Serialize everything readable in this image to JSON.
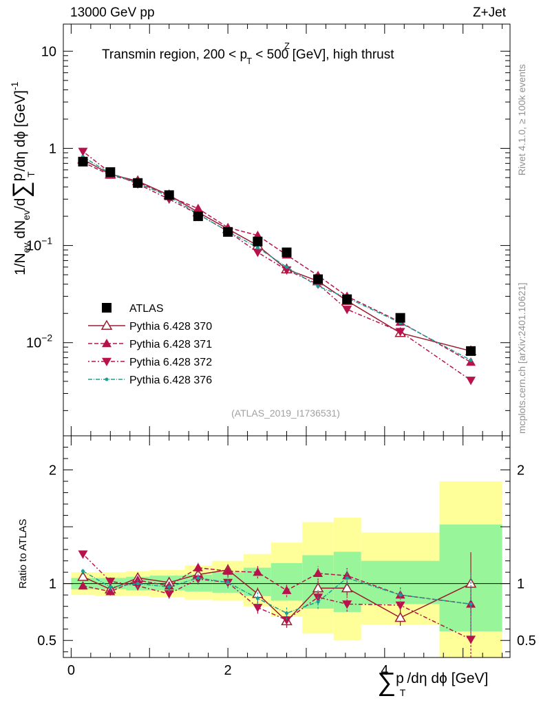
{
  "header": {
    "left": "13000 GeV pp",
    "right": "Z+Jet"
  },
  "side": {
    "rivet": "Rivet 4.1.0, ≥ 100k events",
    "mcplots": "mcplots.cern.ch [arXiv:2401.10621]"
  },
  "labels": {
    "title_pre": "Transmin region, 200 < p",
    "title_sup": "Z",
    "title_sub": "T",
    "title_post": " < 500 [GeV], high thrust",
    "analysis": "(ATLAS_2019_I1736531)",
    "ylabel_main": "1/N",
    "ylabel_ev": "ev",
    "ylabel_mid": " dN",
    "ylabel_ev2": "ev",
    "ylabel_d": "/d",
    "ylabel_sum": "∑",
    "ylabel_p": "p",
    "ylabel_T": "T",
    "ylabel_rest": "/dη dϕ  [GeV]",
    "ylabel_exp": "-1",
    "ylabel_ratio": "Ratio to ATLAS",
    "xlabel_sum": "∑",
    "xlabel_p": "p",
    "xlabel_T": "T",
    "xlabel_rest": "/dη dϕ [GeV]"
  },
  "chart_data": {
    "type": "scatter",
    "x_range": [
      -0.1,
      5.6
    ],
    "main_y_range_log": [
      0.0011,
      19
    ],
    "ratio_y_range": [
      0.35,
      2.3
    ],
    "x_ticks": [
      0,
      2,
      4
    ],
    "main_y_ticks": [
      {
        "value": 10,
        "label": "10"
      },
      {
        "value": 1,
        "label": "1"
      },
      {
        "value": 0.1,
        "label": "10",
        "exp": "−1"
      },
      {
        "value": 0.01,
        "label": "10",
        "exp": "−2"
      }
    ],
    "ratio_y_ticks": [
      0.5,
      1,
      2
    ],
    "x": [
      0.15,
      0.5,
      0.85,
      1.25,
      1.62,
      2.0,
      2.38,
      2.75,
      3.15,
      3.52,
      4.2,
      5.1
    ],
    "x_edges": [
      0,
      0.3,
      0.7,
      1.0,
      1.45,
      1.8,
      2.2,
      2.55,
      2.95,
      3.35,
      3.7,
      4.7,
      5.5
    ],
    "legend": [
      "ATLAS",
      "Pythia 6.428 370",
      "Pythia 6.428 371",
      "Pythia 6.428 372",
      "Pythia 6.428 376"
    ],
    "band_yellow": [
      [
        0.9,
        1.1
      ],
      [
        0.89,
        1.1
      ],
      [
        0.89,
        1.11
      ],
      [
        0.88,
        1.12
      ],
      [
        0.86,
        1.16
      ],
      [
        0.85,
        1.2
      ],
      [
        0.8,
        1.26
      ],
      [
        0.71,
        1.36
      ],
      [
        0.56,
        1.54
      ],
      [
        0.5,
        1.58
      ],
      [
        0.64,
        1.45
      ],
      [
        0.25,
        1.9
      ]
    ],
    "band_green": [
      [
        0.95,
        1.05
      ],
      [
        0.95,
        1.05
      ],
      [
        0.94,
        1.06
      ],
      [
        0.94,
        1.07
      ],
      [
        0.93,
        1.08
      ],
      [
        0.92,
        1.1
      ],
      [
        0.89,
        1.14
      ],
      [
        0.85,
        1.18
      ],
      [
        0.78,
        1.25
      ],
      [
        0.75,
        1.28
      ],
      [
        0.82,
        1.2
      ],
      [
        0.58,
        1.52
      ]
    ],
    "series": [
      {
        "name": "ATLAS",
        "color": "#000000",
        "marker": "square",
        "dash": "",
        "line": false,
        "values": [
          0.73,
          0.57,
          0.44,
          0.33,
          0.2,
          0.138,
          0.11,
          0.085,
          0.045,
          0.028,
          0.018,
          0.0082
        ],
        "ratio": [
          1,
          1,
          1,
          1,
          1,
          1,
          1,
          1,
          1,
          1,
          1,
          1
        ]
      },
      {
        "name": "Pythia 6.428 370",
        "color": "#9b1c2f",
        "marker": "tri-up-open",
        "dash": "",
        "line": true,
        "values": [
          0.77,
          0.54,
          0.46,
          0.33,
          0.22,
          0.148,
          0.1,
          0.057,
          0.043,
          0.027,
          0.0126,
          0.0082
        ],
        "ratio": [
          1.06,
          0.95,
          1.05,
          1.01,
          1.08,
          1.12,
          0.91,
          0.67,
          0.96,
          0.96,
          0.7,
          1.0
        ]
      },
      {
        "name": "Pythia 6.428 371",
        "color": "#b8124c",
        "marker": "tri-up",
        "dash": "6,3",
        "line": true,
        "values": [
          0.72,
          0.53,
          0.45,
          0.32,
          0.24,
          0.153,
          0.127,
          0.08,
          0.049,
          0.03,
          0.0163,
          0.0063
        ],
        "ratio": [
          0.98,
          0.93,
          1.03,
          0.98,
          1.14,
          1.11,
          1.1,
          0.94,
          1.09,
          1.07,
          0.9,
          0.82
        ]
      },
      {
        "name": "Pythia 6.428 372",
        "color": "#b8124c",
        "marker": "tri-down",
        "dash": "2,3,6,3",
        "line": true,
        "values": [
          0.93,
          0.56,
          0.43,
          0.3,
          0.21,
          0.14,
          0.085,
          0.056,
          0.04,
          0.022,
          0.013,
          0.0041
        ],
        "ratio": [
          1.26,
          1.02,
          0.98,
          0.91,
          1.04,
          1.01,
          0.79,
          0.68,
          0.88,
          0.82,
          0.81,
          0.51
        ]
      },
      {
        "name": "Pythia 6.428 376",
        "color": "#1c9e94",
        "marker": "dot",
        "dash": "6,2,1,2",
        "line": true,
        "values": [
          0.82,
          0.55,
          0.44,
          0.32,
          0.21,
          0.14,
          0.095,
          0.06,
          0.038,
          0.029,
          0.016,
          0.0066
        ],
        "ratio": [
          1.11,
          0.97,
          1.0,
          0.97,
          1.05,
          1.01,
          0.87,
          0.74,
          0.84,
          1.05,
          0.9,
          0.82
        ]
      }
    ]
  }
}
